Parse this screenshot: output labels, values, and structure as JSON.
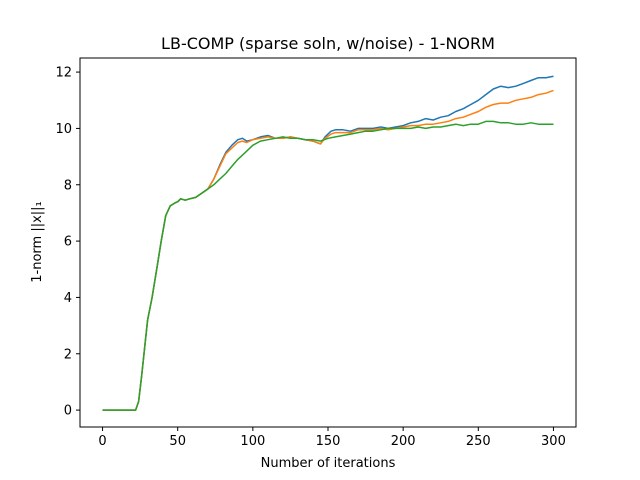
{
  "chart_data": {
    "type": "line",
    "title": "LB-COMP (sparse soln, w/noise) - 1-NORM",
    "xlabel": "Number of iterations",
    "ylabel": "1-norm ||x||₁",
    "xlim": [
      -15,
      315
    ],
    "ylim": [
      -0.6,
      12.5
    ],
    "xticks": [
      0,
      50,
      100,
      150,
      200,
      250,
      300
    ],
    "yticks": [
      0,
      2,
      4,
      6,
      8,
      10,
      12
    ],
    "grid": false,
    "legend": "none",
    "series": [
      {
        "color": "#1f77b4",
        "points": [
          [
            0,
            0
          ],
          [
            22,
            0
          ],
          [
            24,
            0.3
          ],
          [
            26,
            1.2
          ],
          [
            28,
            2.2
          ],
          [
            30,
            3.2
          ],
          [
            33,
            4.0
          ],
          [
            36,
            5.0
          ],
          [
            39,
            6.0
          ],
          [
            42,
            6.9
          ],
          [
            45,
            7.25
          ],
          [
            48,
            7.35
          ],
          [
            50,
            7.4
          ],
          [
            52,
            7.5
          ],
          [
            55,
            7.45
          ],
          [
            58,
            7.5
          ],
          [
            62,
            7.55
          ],
          [
            66,
            7.7
          ],
          [
            70,
            7.85
          ],
          [
            74,
            8.2
          ],
          [
            78,
            8.7
          ],
          [
            82,
            9.15
          ],
          [
            86,
            9.4
          ],
          [
            90,
            9.6
          ],
          [
            93,
            9.65
          ],
          [
            96,
            9.55
          ],
          [
            100,
            9.6
          ],
          [
            105,
            9.7
          ],
          [
            110,
            9.75
          ],
          [
            115,
            9.65
          ],
          [
            120,
            9.65
          ],
          [
            125,
            9.7
          ],
          [
            130,
            9.65
          ],
          [
            135,
            9.6
          ],
          [
            140,
            9.55
          ],
          [
            145,
            9.45
          ],
          [
            148,
            9.7
          ],
          [
            152,
            9.9
          ],
          [
            155,
            9.95
          ],
          [
            160,
            9.95
          ],
          [
            165,
            9.9
          ],
          [
            170,
            10.0
          ],
          [
            175,
            10.0
          ],
          [
            180,
            10.0
          ],
          [
            185,
            10.05
          ],
          [
            190,
            10.0
          ],
          [
            195,
            10.05
          ],
          [
            200,
            10.1
          ],
          [
            205,
            10.2
          ],
          [
            210,
            10.25
          ],
          [
            215,
            10.35
          ],
          [
            220,
            10.3
          ],
          [
            225,
            10.4
          ],
          [
            230,
            10.45
          ],
          [
            235,
            10.6
          ],
          [
            240,
            10.7
          ],
          [
            245,
            10.85
          ],
          [
            250,
            11.0
          ],
          [
            255,
            11.2
          ],
          [
            260,
            11.4
          ],
          [
            265,
            11.5
          ],
          [
            270,
            11.45
          ],
          [
            275,
            11.5
          ],
          [
            280,
            11.6
          ],
          [
            285,
            11.7
          ],
          [
            290,
            11.8
          ],
          [
            295,
            11.8
          ],
          [
            300,
            11.85
          ]
        ]
      },
      {
        "color": "#ff7f0e",
        "points": [
          [
            0,
            0
          ],
          [
            22,
            0
          ],
          [
            24,
            0.3
          ],
          [
            26,
            1.2
          ],
          [
            28,
            2.2
          ],
          [
            30,
            3.2
          ],
          [
            33,
            4.0
          ],
          [
            36,
            5.0
          ],
          [
            39,
            6.0
          ],
          [
            42,
            6.9
          ],
          [
            45,
            7.25
          ],
          [
            48,
            7.35
          ],
          [
            50,
            7.4
          ],
          [
            52,
            7.5
          ],
          [
            55,
            7.45
          ],
          [
            58,
            7.5
          ],
          [
            62,
            7.55
          ],
          [
            66,
            7.7
          ],
          [
            70,
            7.85
          ],
          [
            74,
            8.2
          ],
          [
            78,
            8.65
          ],
          [
            82,
            9.1
          ],
          [
            86,
            9.3
          ],
          [
            90,
            9.5
          ],
          [
            93,
            9.55
          ],
          [
            96,
            9.5
          ],
          [
            100,
            9.6
          ],
          [
            105,
            9.65
          ],
          [
            110,
            9.7
          ],
          [
            115,
            9.65
          ],
          [
            120,
            9.65
          ],
          [
            125,
            9.7
          ],
          [
            130,
            9.65
          ],
          [
            135,
            9.6
          ],
          [
            140,
            9.55
          ],
          [
            145,
            9.45
          ],
          [
            148,
            9.65
          ],
          [
            152,
            9.8
          ],
          [
            155,
            9.85
          ],
          [
            160,
            9.85
          ],
          [
            165,
            9.85
          ],
          [
            170,
            9.95
          ],
          [
            175,
            9.95
          ],
          [
            180,
            9.95
          ],
          [
            185,
            10.0
          ],
          [
            190,
            9.95
          ],
          [
            195,
            10.0
          ],
          [
            200,
            10.05
          ],
          [
            205,
            10.1
          ],
          [
            210,
            10.1
          ],
          [
            215,
            10.15
          ],
          [
            220,
            10.15
          ],
          [
            225,
            10.2
          ],
          [
            230,
            10.25
          ],
          [
            235,
            10.35
          ],
          [
            240,
            10.4
          ],
          [
            245,
            10.5
          ],
          [
            250,
            10.6
          ],
          [
            255,
            10.75
          ],
          [
            260,
            10.85
          ],
          [
            265,
            10.9
          ],
          [
            270,
            10.9
          ],
          [
            275,
            11.0
          ],
          [
            280,
            11.05
          ],
          [
            285,
            11.1
          ],
          [
            290,
            11.2
          ],
          [
            295,
            11.25
          ],
          [
            300,
            11.35
          ]
        ]
      },
      {
        "color": "#2ca02c",
        "points": [
          [
            0,
            0
          ],
          [
            22,
            0
          ],
          [
            24,
            0.3
          ],
          [
            26,
            1.2
          ],
          [
            28,
            2.2
          ],
          [
            30,
            3.2
          ],
          [
            33,
            4.0
          ],
          [
            36,
            5.0
          ],
          [
            39,
            6.0
          ],
          [
            42,
            6.9
          ],
          [
            45,
            7.25
          ],
          [
            48,
            7.35
          ],
          [
            50,
            7.4
          ],
          [
            52,
            7.5
          ],
          [
            55,
            7.45
          ],
          [
            58,
            7.5
          ],
          [
            62,
            7.55
          ],
          [
            66,
            7.7
          ],
          [
            70,
            7.85
          ],
          [
            74,
            8.0
          ],
          [
            78,
            8.2
          ],
          [
            82,
            8.4
          ],
          [
            86,
            8.65
          ],
          [
            90,
            8.9
          ],
          [
            95,
            9.15
          ],
          [
            100,
            9.4
          ],
          [
            105,
            9.55
          ],
          [
            110,
            9.6
          ],
          [
            115,
            9.65
          ],
          [
            120,
            9.7
          ],
          [
            125,
            9.65
          ],
          [
            130,
            9.65
          ],
          [
            135,
            9.6
          ],
          [
            140,
            9.6
          ],
          [
            145,
            9.55
          ],
          [
            150,
            9.65
          ],
          [
            155,
            9.7
          ],
          [
            160,
            9.75
          ],
          [
            165,
            9.8
          ],
          [
            170,
            9.85
          ],
          [
            175,
            9.9
          ],
          [
            180,
            9.9
          ],
          [
            185,
            9.95
          ],
          [
            190,
            10.0
          ],
          [
            195,
            10.0
          ],
          [
            200,
            10.0
          ],
          [
            205,
            10.0
          ],
          [
            210,
            10.05
          ],
          [
            215,
            10.0
          ],
          [
            220,
            10.05
          ],
          [
            225,
            10.05
          ],
          [
            230,
            10.1
          ],
          [
            235,
            10.15
          ],
          [
            240,
            10.1
          ],
          [
            245,
            10.15
          ],
          [
            250,
            10.15
          ],
          [
            255,
            10.25
          ],
          [
            260,
            10.25
          ],
          [
            265,
            10.2
          ],
          [
            270,
            10.2
          ],
          [
            275,
            10.15
          ],
          [
            280,
            10.15
          ],
          [
            285,
            10.2
          ],
          [
            290,
            10.15
          ],
          [
            295,
            10.15
          ],
          [
            300,
            10.15
          ]
        ]
      }
    ]
  }
}
